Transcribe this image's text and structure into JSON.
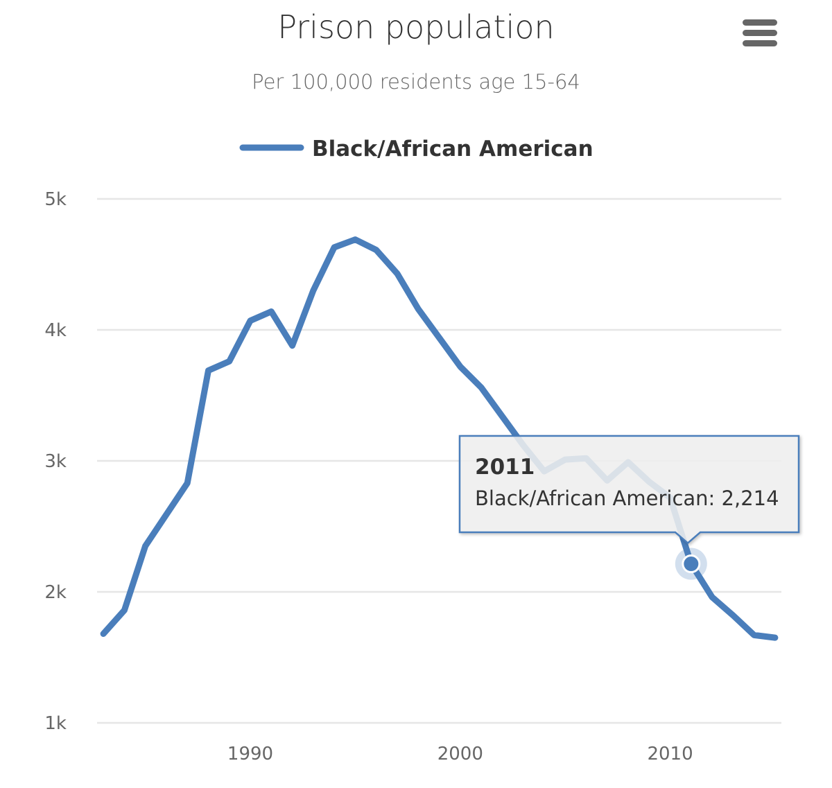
{
  "title": "Prison population",
  "subtitle": "Per 100,000 residents age 15-64",
  "menu_icon": "hamburger-menu-icon",
  "colors": {
    "series": "#4a7ebb",
    "tooltip_border": "#4a7ebb",
    "tooltip_bg": "#f7f7f7"
  },
  "chart_data": {
    "type": "line",
    "title": "Prison population",
    "subtitle": "Per 100,000 residents age 15-64",
    "xlabel": "",
    "ylabel": "",
    "y_ticks": [
      1000,
      2000,
      3000,
      4000,
      5000
    ],
    "y_tick_labels": [
      "1k",
      "2k",
      "3k",
      "4k",
      "5k"
    ],
    "x_ticks": [
      1990,
      2000,
      2010
    ],
    "x_tick_labels": [
      "1990",
      "2000",
      "2010"
    ],
    "xlim": [
      1982.7,
      2015.3
    ],
    "ylim": [
      1000,
      5000
    ],
    "grid": true,
    "legend_position": "top-center",
    "series": [
      {
        "name": "Black/African American",
        "x": [
          1983,
          1984,
          1985,
          1986,
          1987,
          1988,
          1989,
          1990,
          1991,
          1992,
          1993,
          1994,
          1995,
          1996,
          1997,
          1998,
          1999,
          2000,
          2001,
          2002,
          2003,
          2004,
          2005,
          2006,
          2007,
          2008,
          2009,
          2010,
          2011,
          2012,
          2013,
          2014,
          2015
        ],
        "values": [
          1680,
          1860,
          2350,
          2590,
          2830,
          3690,
          3760,
          4070,
          4140,
          3880,
          4300,
          4630,
          4690,
          4610,
          4430,
          4160,
          3940,
          3720,
          3560,
          3340,
          3120,
          2920,
          3010,
          3020,
          2850,
          2990,
          2840,
          2720,
          2214,
          1960,
          1820,
          1670,
          1650
        ]
      }
    ],
    "tooltip": {
      "x": 2011,
      "title": "2011",
      "text": "Black/African American: 2,214",
      "value": 2214
    }
  }
}
